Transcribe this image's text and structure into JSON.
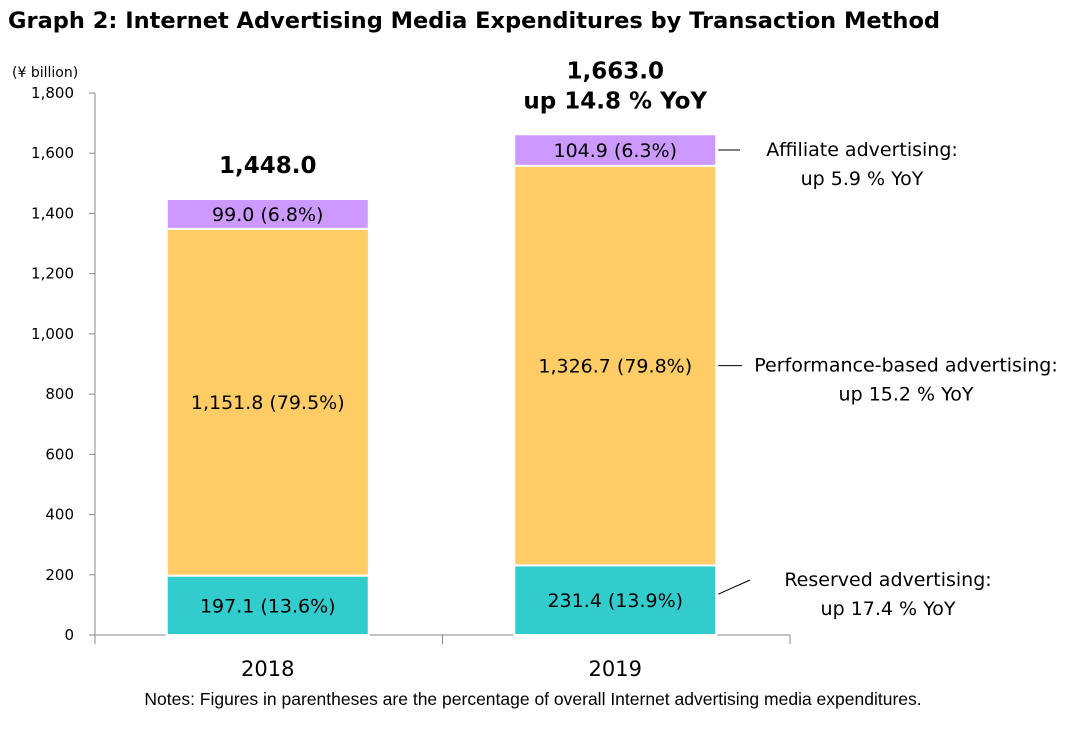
{
  "chart_data": {
    "type": "bar",
    "stacked": true,
    "title": "Graph 2: Internet Advertising Media Expenditures by Transaction Method",
    "unit_label": "(¥ billion)",
    "ylim": [
      0,
      1800
    ],
    "yticks": [
      0,
      200,
      400,
      600,
      800,
      1000,
      1200,
      1400,
      1600,
      1800
    ],
    "ytick_labels": [
      "0",
      "200",
      "400",
      "600",
      "800",
      "1,000",
      "1,200",
      "1,400",
      "1,600",
      "1,800"
    ],
    "grid": false,
    "categories": [
      "2018",
      "2019"
    ],
    "series": [
      {
        "name": "Reserved advertising",
        "color": "#33cccc",
        "values": [
          197.1,
          231.4
        ],
        "labels": [
          "197.1 (13.6%)",
          "231.4 (13.9%)"
        ],
        "annotation": [
          "Reserved advertising:",
          "up 17.4 % YoY"
        ]
      },
      {
        "name": "Performance-based advertising",
        "color": "#ffcc66",
        "values": [
          1151.8,
          1326.7
        ],
        "labels": [
          "1,151.8 (79.5%)",
          "1,326.7 (79.8%)"
        ],
        "annotation": [
          "Performance-based advertising:",
          "up 15.2 % YoY"
        ]
      },
      {
        "name": "Affiliate advertising",
        "color": "#cc99ff",
        "values": [
          99.0,
          104.9
        ],
        "labels": [
          "99.0 (6.8%)",
          "104.9 (6.3%)"
        ],
        "annotation": [
          "Affiliate advertising:",
          "up 5.9 % YoY"
        ]
      }
    ],
    "totals": [
      [
        "1,448.0"
      ],
      [
        "1,663.0",
        "up 14.8 % YoY"
      ]
    ],
    "note": "Notes: Figures in parentheses are the percentage of overall Internet advertising media expenditures."
  }
}
